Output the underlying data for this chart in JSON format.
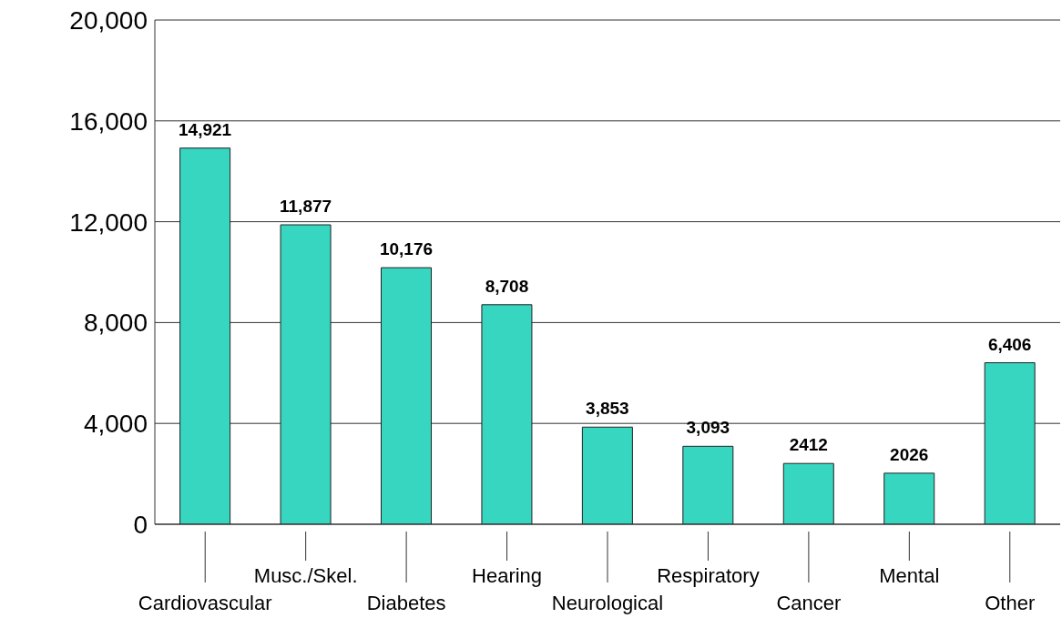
{
  "chart_data": {
    "type": "bar",
    "categories": [
      "Cardiovascular",
      "Musc./Skel.",
      "Diabetes",
      "Hearing",
      "Neurological",
      "Respiratory",
      "Cancer",
      "Mental",
      "Other"
    ],
    "values": [
      14921,
      11877,
      10176,
      8708,
      3853,
      3093,
      2412,
      2026,
      6406
    ],
    "value_labels": [
      "14,921",
      "11,877",
      "10,176",
      "8,708",
      "3,853",
      "3,093",
      "2412",
      "2026",
      "6,406"
    ],
    "color": "#36d6c0",
    "ylim": [
      0,
      20000
    ],
    "yticks": [
      {
        "value": 0,
        "label": "0"
      },
      {
        "value": 4000,
        "label": "4,000"
      },
      {
        "value": 8000,
        "label": "8,000"
      },
      {
        "value": 12000,
        "label": "12,000"
      },
      {
        "value": 16000,
        "label": "16,000"
      },
      {
        "value": 20000,
        "label": "20,000"
      }
    ],
    "grid": "y"
  }
}
